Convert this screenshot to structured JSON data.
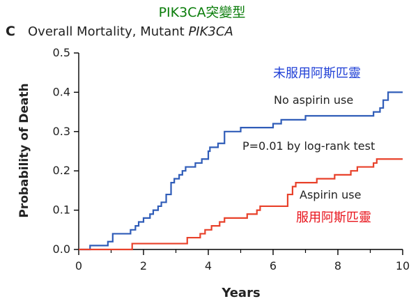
{
  "annotation_top": "PIK3CA突變型",
  "panel_letter": "C",
  "title_prefix": "Overall Mortality, Mutant ",
  "title_gene": "PIK3CA",
  "colors": {
    "green_annotation": "#0a7d0a",
    "no_aspirin": "#2f5cb8",
    "aspirin": "#e8412a",
    "blue_label": "#1f3fd6",
    "red_label": "#e8121a",
    "axis": "#000000",
    "text": "#222222"
  },
  "chart_data": {
    "type": "line",
    "title": "Overall Mortality, Mutant PIK3CA",
    "xlabel": "Years",
    "ylabel": "Probability of Death",
    "xlim": [
      0,
      10
    ],
    "ylim": [
      0,
      0.5
    ],
    "xticks": [
      0,
      2,
      4,
      6,
      8,
      10
    ],
    "yticks": [
      "0.0",
      "0.1",
      "0.2",
      "0.3",
      "0.4",
      "0.5"
    ],
    "grid": false,
    "series": [
      {
        "name": "No aspirin use",
        "label_cn": "未服用阿斯匹靈",
        "step": true,
        "points": [
          [
            0,
            0.0
          ],
          [
            0.35,
            0.0
          ],
          [
            0.35,
            0.01
          ],
          [
            0.9,
            0.01
          ],
          [
            0.9,
            0.02
          ],
          [
            1.05,
            0.02
          ],
          [
            1.05,
            0.04
          ],
          [
            1.6,
            0.04
          ],
          [
            1.6,
            0.05
          ],
          [
            1.75,
            0.05
          ],
          [
            1.75,
            0.06
          ],
          [
            1.85,
            0.06
          ],
          [
            1.85,
            0.07
          ],
          [
            2.0,
            0.07
          ],
          [
            2.0,
            0.08
          ],
          [
            2.2,
            0.08
          ],
          [
            2.2,
            0.09
          ],
          [
            2.3,
            0.09
          ],
          [
            2.3,
            0.1
          ],
          [
            2.45,
            0.1
          ],
          [
            2.45,
            0.11
          ],
          [
            2.55,
            0.11
          ],
          [
            2.55,
            0.12
          ],
          [
            2.7,
            0.12
          ],
          [
            2.7,
            0.14
          ],
          [
            2.85,
            0.14
          ],
          [
            2.85,
            0.17
          ],
          [
            2.95,
            0.17
          ],
          [
            2.95,
            0.18
          ],
          [
            3.1,
            0.18
          ],
          [
            3.1,
            0.19
          ],
          [
            3.2,
            0.19
          ],
          [
            3.2,
            0.2
          ],
          [
            3.3,
            0.2
          ],
          [
            3.3,
            0.21
          ],
          [
            3.6,
            0.21
          ],
          [
            3.6,
            0.22
          ],
          [
            3.8,
            0.22
          ],
          [
            3.8,
            0.23
          ],
          [
            4.0,
            0.23
          ],
          [
            4.0,
            0.25
          ],
          [
            4.05,
            0.25
          ],
          [
            4.05,
            0.26
          ],
          [
            4.3,
            0.26
          ],
          [
            4.3,
            0.27
          ],
          [
            4.5,
            0.27
          ],
          [
            4.5,
            0.3
          ],
          [
            5.0,
            0.3
          ],
          [
            5.0,
            0.31
          ],
          [
            5.3,
            0.31
          ],
          [
            5.3,
            0.31
          ],
          [
            6.0,
            0.31
          ],
          [
            6.0,
            0.32
          ],
          [
            6.25,
            0.32
          ],
          [
            6.25,
            0.33
          ],
          [
            7.0,
            0.33
          ],
          [
            7.0,
            0.34
          ],
          [
            9.1,
            0.34
          ],
          [
            9.1,
            0.35
          ],
          [
            9.3,
            0.35
          ],
          [
            9.3,
            0.36
          ],
          [
            9.4,
            0.36
          ],
          [
            9.4,
            0.38
          ],
          [
            9.55,
            0.38
          ],
          [
            9.55,
            0.4
          ],
          [
            10.0,
            0.4
          ]
        ]
      },
      {
        "name": "Aspirin use",
        "label_cn": "服用阿斯匹靈",
        "step": true,
        "points": [
          [
            0,
            0.0
          ],
          [
            1.65,
            0.0
          ],
          [
            1.65,
            0.015
          ],
          [
            3.35,
            0.015
          ],
          [
            3.35,
            0.03
          ],
          [
            3.75,
            0.03
          ],
          [
            3.75,
            0.04
          ],
          [
            3.9,
            0.04
          ],
          [
            3.9,
            0.05
          ],
          [
            4.1,
            0.05
          ],
          [
            4.1,
            0.06
          ],
          [
            4.35,
            0.06
          ],
          [
            4.35,
            0.07
          ],
          [
            4.5,
            0.07
          ],
          [
            4.5,
            0.08
          ],
          [
            5.2,
            0.08
          ],
          [
            5.2,
            0.09
          ],
          [
            5.5,
            0.09
          ],
          [
            5.5,
            0.1
          ],
          [
            5.6,
            0.1
          ],
          [
            5.6,
            0.11
          ],
          [
            6.45,
            0.11
          ],
          [
            6.45,
            0.14
          ],
          [
            6.6,
            0.14
          ],
          [
            6.6,
            0.16
          ],
          [
            6.7,
            0.16
          ],
          [
            6.7,
            0.17
          ],
          [
            7.35,
            0.17
          ],
          [
            7.35,
            0.18
          ],
          [
            7.9,
            0.18
          ],
          [
            7.9,
            0.19
          ],
          [
            8.4,
            0.19
          ],
          [
            8.4,
            0.2
          ],
          [
            8.6,
            0.2
          ],
          [
            8.6,
            0.21
          ],
          [
            9.1,
            0.21
          ],
          [
            9.1,
            0.22
          ],
          [
            9.2,
            0.22
          ],
          [
            9.2,
            0.23
          ],
          [
            10.0,
            0.23
          ]
        ]
      }
    ],
    "annotations": {
      "pvalue": "P=0.01 by log-rank test"
    }
  }
}
